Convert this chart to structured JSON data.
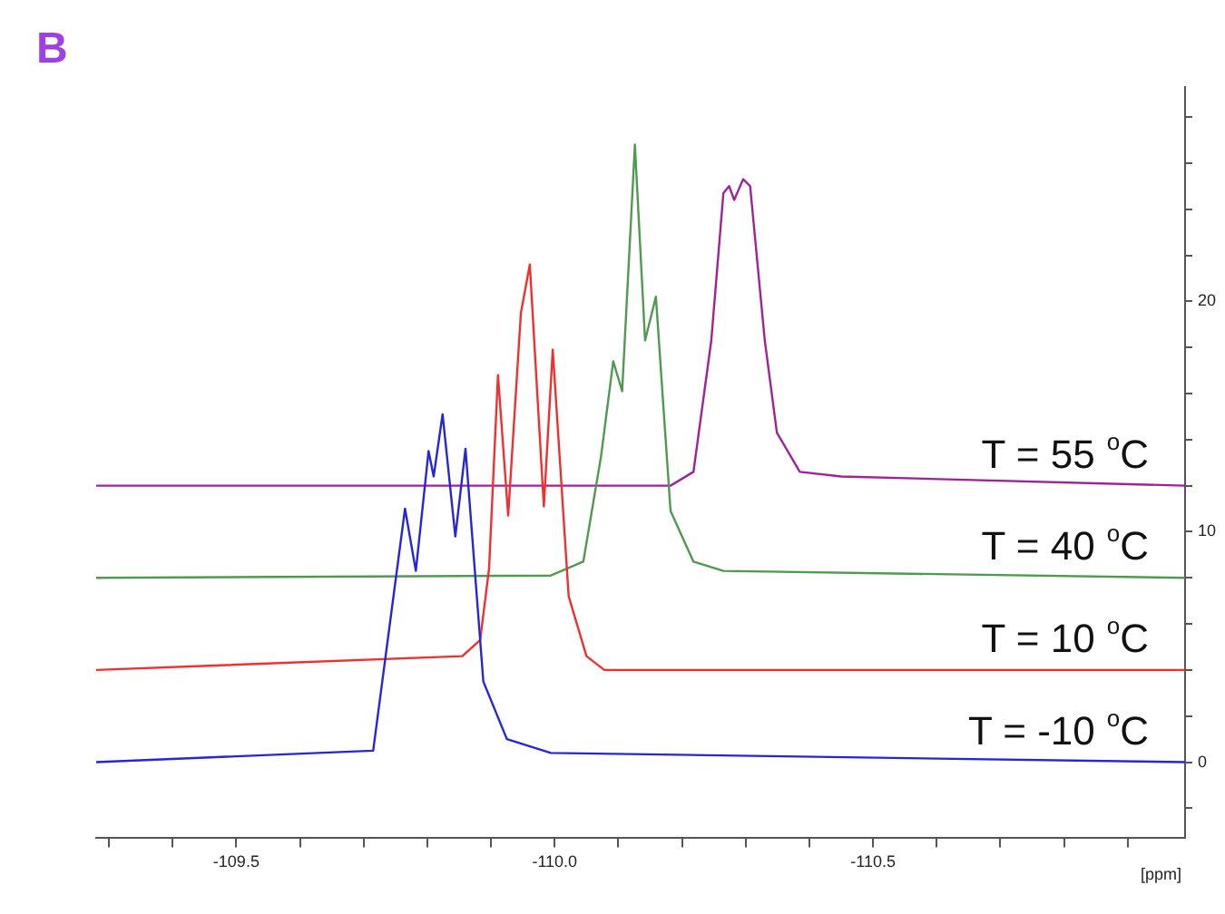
{
  "chart_data": {
    "type": "line",
    "title": "B",
    "xlabel": "[ppm]",
    "xlim": [
      -109.28,
      -110.99
    ],
    "xticks": [
      {
        "value": -109.3,
        "label": null
      },
      {
        "value": -109.4,
        "label": null
      },
      -109.5,
      {
        "value": -109.6,
        "label": null
      },
      {
        "value": -109.7,
        "label": null
      },
      {
        "value": -109.8,
        "label": null
      },
      {
        "value": -109.9,
        "label": null
      },
      {
        "value": -110.0,
        "label": "-110.0"
      },
      {
        "value": -110.1,
        "label": null
      },
      {
        "value": -110.2,
        "label": null
      },
      {
        "value": -110.3,
        "label": null
      },
      {
        "value": -110.4,
        "label": null
      },
      -110.5,
      {
        "value": -110.6,
        "label": null
      },
      {
        "value": -110.7,
        "label": null
      },
      {
        "value": -110.8,
        "label": null
      },
      {
        "value": -110.9,
        "label": null
      }
    ],
    "ylim": [
      -3.3,
      29.3
    ],
    "yticks": [
      {
        "value": -2,
        "label": null
      },
      0,
      {
        "value": 2,
        "label": null
      },
      {
        "value": 4,
        "label": null
      },
      {
        "value": 6,
        "label": null
      },
      {
        "value": 8,
        "label": null
      },
      10,
      {
        "value": 12,
        "label": null
      },
      {
        "value": 14,
        "label": null
      },
      {
        "value": 16,
        "label": null
      },
      {
        "value": 18,
        "label": null
      },
      20,
      {
        "value": 22,
        "label": null
      },
      {
        "value": 24,
        "label": null
      },
      {
        "value": 26,
        "label": null
      },
      {
        "value": 28,
        "label": null
      }
    ],
    "grid": false,
    "legend": false,
    "marker": "none",
    "line_style": "solid",
    "series": [
      {
        "name": "T = -10 $^{o}$C",
        "color": "#2626d8",
        "x": [
          -109.28,
          -109.715,
          -109.765,
          -109.782,
          -109.802,
          -109.81,
          -109.824,
          -109.844,
          -109.86,
          -109.888,
          -109.925,
          -109.994,
          -110.99
        ],
        "values": [
          0,
          0.5,
          11.0,
          8.3,
          13.5,
          12.4,
          15.1,
          9.8,
          13.6,
          3.5,
          1.0,
          0.4,
          0
        ]
      },
      {
        "name": "T = 10 $^{o}$C",
        "color": "#f03030",
        "x": [
          -109.28,
          -109.855,
          -109.883,
          -109.897,
          -109.911,
          -109.927,
          -109.947,
          -109.961,
          -109.983,
          -109.997,
          -110.022,
          -110.05,
          -110.078,
          -110.99
        ],
        "values": [
          4,
          4.6,
          5.3,
          8.4,
          16.8,
          10.7,
          19.5,
          21.6,
          11.1,
          17.9,
          7.2,
          4.6,
          4,
          4
        ]
      },
      {
        "name": "T = 40 $^{o}$C",
        "color": "#4f9a4f",
        "x": [
          -109.28,
          -109.994,
          -110.045,
          -110.073,
          -110.092,
          -110.106,
          -110.126,
          -110.142,
          -110.159,
          -110.182,
          -110.218,
          -110.265,
          -110.99
        ],
        "values": [
          8,
          8.1,
          8.7,
          13.3,
          17.4,
          16.1,
          26.8,
          18.3,
          20.2,
          10.9,
          8.7,
          8.3,
          8
        ]
      },
      {
        "name": "T = 55 $^{o}$C",
        "color": "#a0229a",
        "x": [
          -109.28,
          -110.182,
          -110.218,
          -110.246,
          -110.265,
          -110.274,
          -110.282,
          -110.296,
          -110.307,
          -110.33,
          -110.349,
          -110.385,
          -110.45,
          -110.99
        ],
        "values": [
          12,
          12,
          12.6,
          18.3,
          24.7,
          25.0,
          24.4,
          25.3,
          25.0,
          18.3,
          14.3,
          12.6,
          12.4,
          12
        ]
      }
    ]
  }
}
